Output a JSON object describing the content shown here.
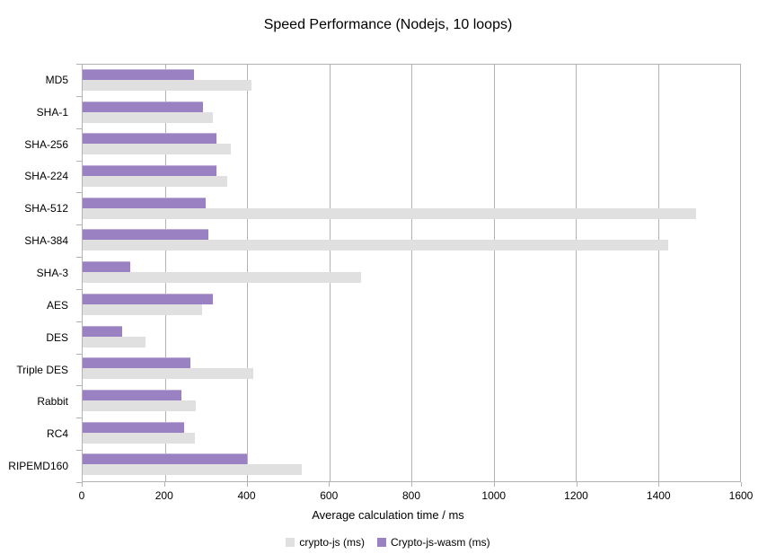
{
  "title": "Speed Performance (Nodejs, 10 loops)",
  "colors": {
    "background": "#ffffff",
    "axis": "#b3b3b3",
    "gridline": "#b3b3b3",
    "text": "#000000",
    "series_crypto_js": "#e0e0e0",
    "series_crypto_js_wasm": "#9a82c2"
  },
  "chart_data": {
    "type": "bar",
    "orientation": "horizontal",
    "title": "Speed Performance (Nodejs, 10 loops)",
    "xlabel": "Average calculation time / ms",
    "ylabel": "",
    "xlim": [
      0,
      1600
    ],
    "xticks": [
      0,
      200,
      400,
      600,
      800,
      1000,
      1200,
      1400,
      1600
    ],
    "grid": true,
    "legend_position": "bottom",
    "categories": [
      "MD5",
      "SHA-1",
      "SHA-256",
      "SHA-224",
      "SHA-512",
      "SHA-384",
      "SHA-3",
      "AES",
      "DES",
      "Triple DES",
      "Rabbit",
      "RC4",
      "RIPEMD160"
    ],
    "series": [
      {
        "name": "crypto-js (ms)",
        "color": "#e0e0e0",
        "values": [
          412,
          318,
          360,
          351,
          1493,
          1425,
          677,
          291,
          154,
          415,
          275,
          273,
          533
        ]
      },
      {
        "name": "Crypto-js-wasm (ms)",
        "color": "#9a82c2",
        "values": [
          270,
          293,
          326,
          326,
          300,
          306,
          115,
          317,
          96,
          263,
          240,
          248,
          400
        ]
      }
    ],
    "bar_draw_order_note": "Within each category: Crypto-js-wasm (purple) bar on top, crypto-js (gray) bar below"
  }
}
